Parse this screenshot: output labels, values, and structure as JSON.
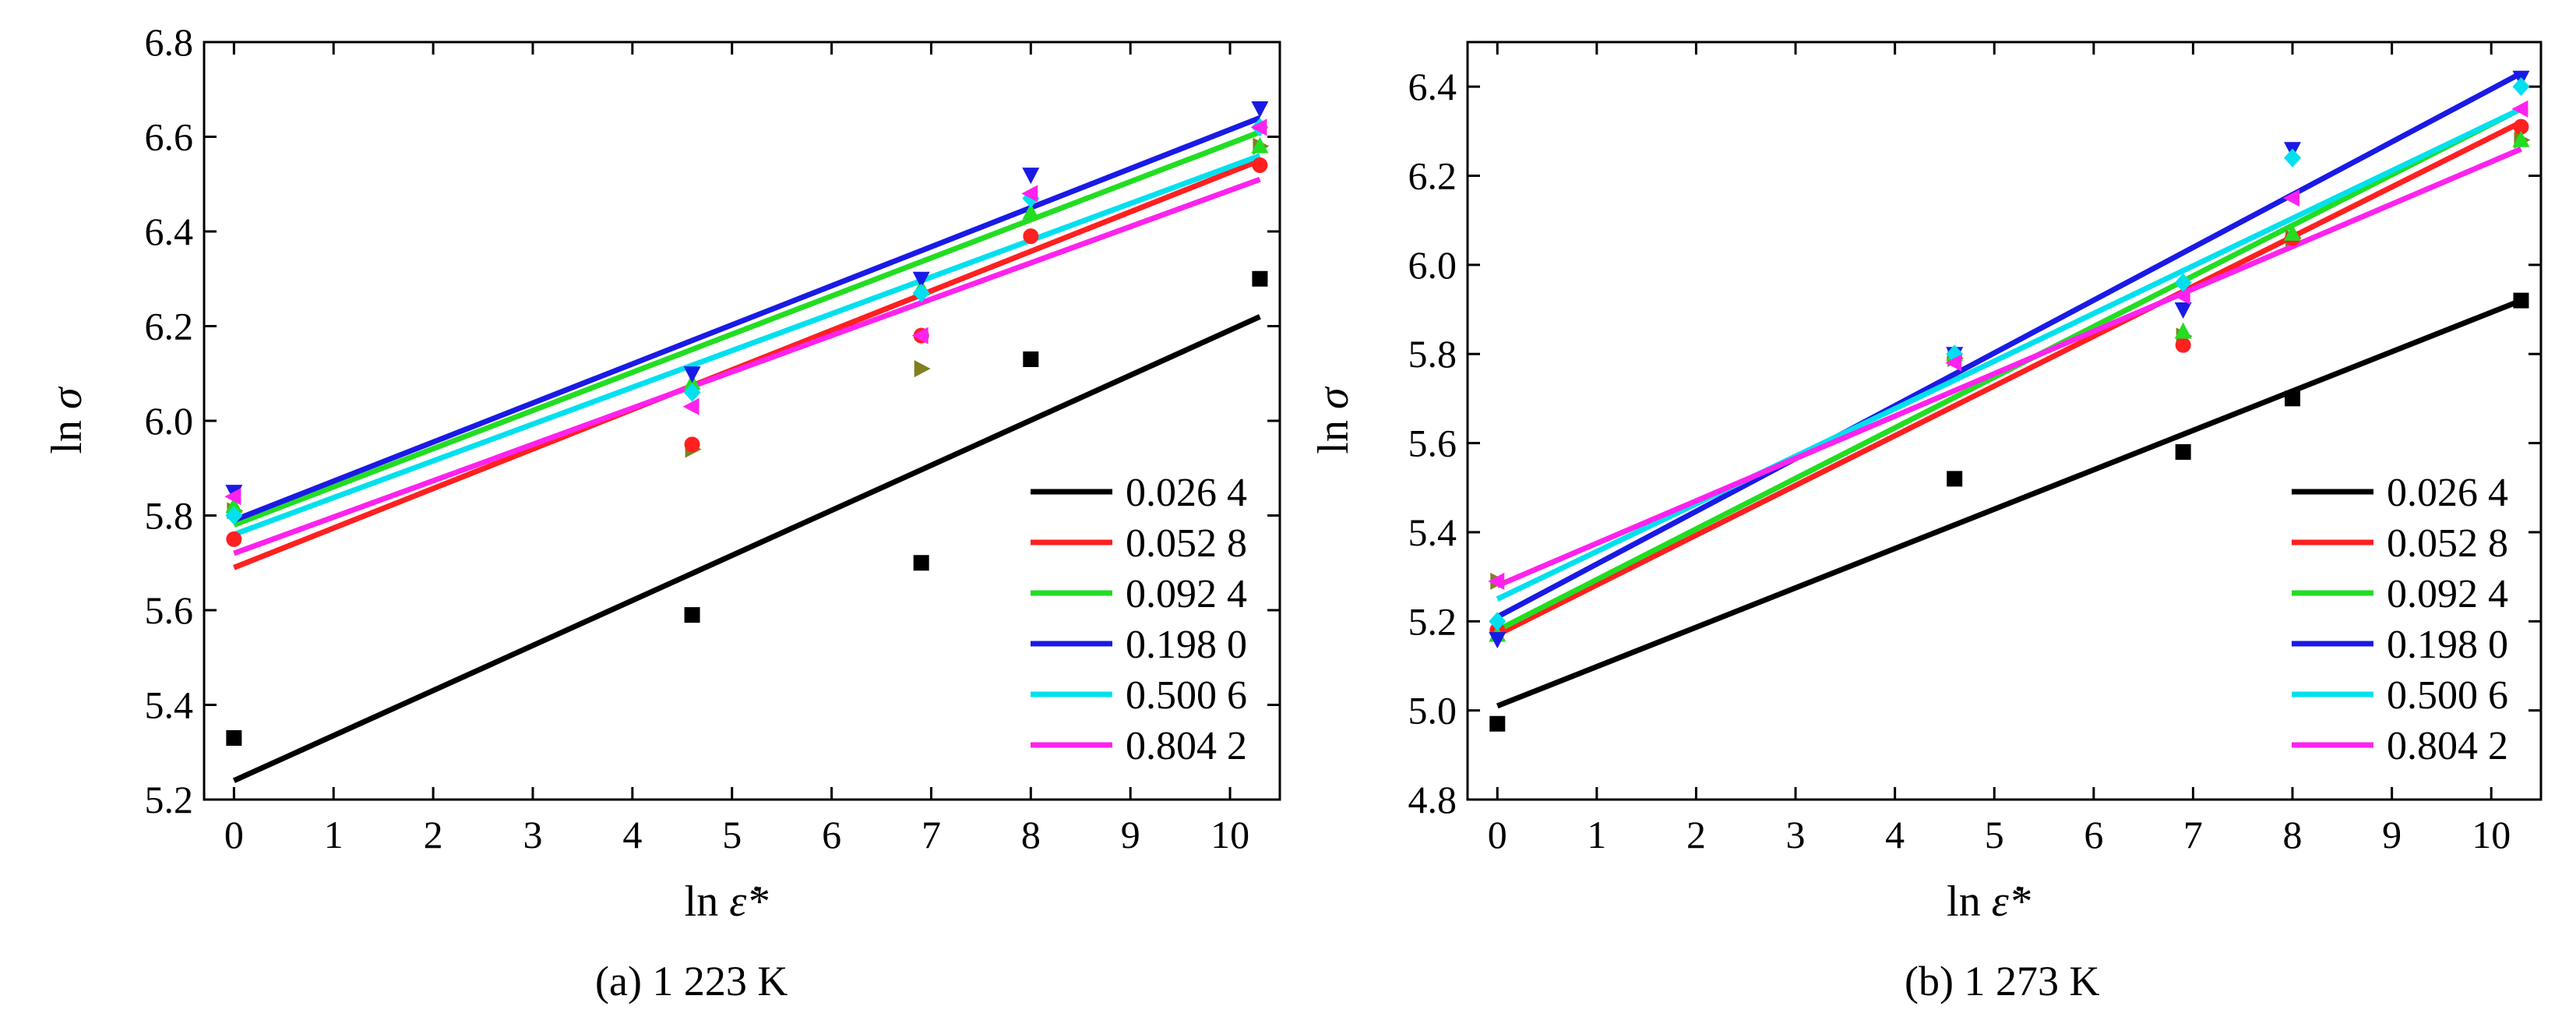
{
  "chart_data": [
    {
      "type": "scatter",
      "caption": "(a) 1 223 K",
      "xlabel": "ln ε̇*",
      "ylabel": "ln σ",
      "xlim": [
        -0.3,
        10.5
      ],
      "ylim": [
        5.2,
        6.8
      ],
      "xticks": [
        0,
        1,
        2,
        3,
        4,
        5,
        6,
        7,
        8,
        9,
        10
      ],
      "yticks": [
        5.2,
        5.4,
        5.6,
        5.8,
        6.0,
        6.2,
        6.4,
        6.6,
        6.8
      ],
      "ytick_labels": [
        "5.2",
        "5.4",
        "5.6",
        "5.8",
        "6.0",
        "6.2",
        "6.4",
        "6.6",
        "6.8"
      ],
      "x": [
        0,
        4.6,
        6.9,
        8.0,
        10.3
      ],
      "legend_position": "bottom-right",
      "series": [
        {
          "name": "0.026 4",
          "color": "#000000",
          "marker": "square",
          "values": [
            5.33,
            5.59,
            5.7,
            6.13,
            6.3
          ],
          "fit": [
            5.24,
            6.22
          ]
        },
        {
          "name": "0.052 8",
          "color": "#ff2020",
          "marker": "circle",
          "values": [
            5.75,
            5.95,
            6.18,
            6.39,
            6.54
          ],
          "fit": [
            5.69,
            6.55
          ]
        },
        {
          "name": "0.092 4",
          "color": "#22dd22",
          "marker": "triangle-up",
          "values": [
            5.82,
            6.08,
            6.28,
            6.44,
            6.58
          ],
          "fit": [
            5.78,
            6.61
          ]
        },
        {
          "name": "0.198 0",
          "color": "#1a1ae6",
          "marker": "triangle-down",
          "values": [
            5.85,
            6.1,
            6.3,
            6.52,
            6.66
          ],
          "fit": [
            5.79,
            6.64
          ]
        },
        {
          "name": "0.500 6",
          "color": "#00e0ee",
          "marker": "diamond",
          "values": [
            5.8,
            6.06,
            6.27,
            6.47,
            6.62
          ],
          "fit": [
            5.76,
            6.56
          ]
        },
        {
          "name": "0.804 2",
          "color": "#ff22ee",
          "marker": "triangle-left",
          "values": [
            5.84,
            6.03,
            6.18,
            6.48,
            6.62
          ],
          "fit": [
            5.72,
            6.51
          ]
        }
      ],
      "extra_markers": [
        {
          "color": "#808020",
          "marker": "triangle-right",
          "points": [
            [
              0,
              5.81
            ],
            [
              4.6,
              5.94
            ],
            [
              6.9,
              6.11
            ],
            [
              10.3,
              6.58
            ]
          ]
        }
      ]
    },
    {
      "type": "scatter",
      "caption": "(b) 1 273 K",
      "xlabel": "ln ε̇*",
      "ylabel": "ln σ",
      "xlim": [
        -0.3,
        10.5
      ],
      "ylim": [
        4.8,
        6.5
      ],
      "xticks": [
        0,
        1,
        2,
        3,
        4,
        5,
        6,
        7,
        8,
        9,
        10
      ],
      "yticks": [
        4.8,
        5.0,
        5.2,
        5.4,
        5.6,
        5.8,
        6.0,
        6.2,
        6.4
      ],
      "ytick_labels": [
        "4.8",
        "5.0",
        "5.2",
        "5.4",
        "5.6",
        "5.8",
        "6.0",
        "6.2",
        "6.4"
      ],
      "x": [
        0,
        4.6,
        6.9,
        8.0,
        10.3
      ],
      "legend_position": "bottom-right",
      "series": [
        {
          "name": "0.026 4",
          "color": "#000000",
          "marker": "square",
          "values": [
            4.97,
            5.52,
            5.58,
            5.7,
            5.92
          ],
          "fit": [
            5.01,
            5.92
          ]
        },
        {
          "name": "0.052 8",
          "color": "#ff2020",
          "marker": "circle",
          "values": [
            5.18,
            5.79,
            5.82,
            6.06,
            6.31
          ],
          "fit": [
            5.17,
            6.32
          ]
        },
        {
          "name": "0.092 4",
          "color": "#22dd22",
          "marker": "triangle-up",
          "values": [
            5.17,
            5.8,
            5.85,
            6.07,
            6.28
          ],
          "fit": [
            5.18,
            6.35
          ]
        },
        {
          "name": "0.198 0",
          "color": "#1a1ae6",
          "marker": "triangle-down",
          "values": [
            5.16,
            5.8,
            5.9,
            6.26,
            6.42
          ],
          "fit": [
            5.21,
            6.43
          ]
        },
        {
          "name": "0.500 6",
          "color": "#00e0ee",
          "marker": "diamond",
          "values": [
            5.2,
            5.8,
            5.96,
            6.24,
            6.4
          ],
          "fit": [
            5.25,
            6.35
          ]
        },
        {
          "name": "0.804 2",
          "color": "#ff22ee",
          "marker": "triangle-left",
          "values": [
            5.29,
            5.78,
            5.93,
            6.15,
            6.35
          ],
          "fit": [
            5.28,
            6.26
          ]
        }
      ],
      "extra_markers": [
        {
          "color": "#808020",
          "marker": "triangle-right",
          "points": [
            [
              0,
              5.29
            ],
            [
              4.6,
              5.79
            ],
            [
              6.9,
              5.84
            ],
            [
              8.0,
              6.06
            ],
            [
              10.3,
              6.28
            ]
          ]
        }
      ]
    }
  ]
}
